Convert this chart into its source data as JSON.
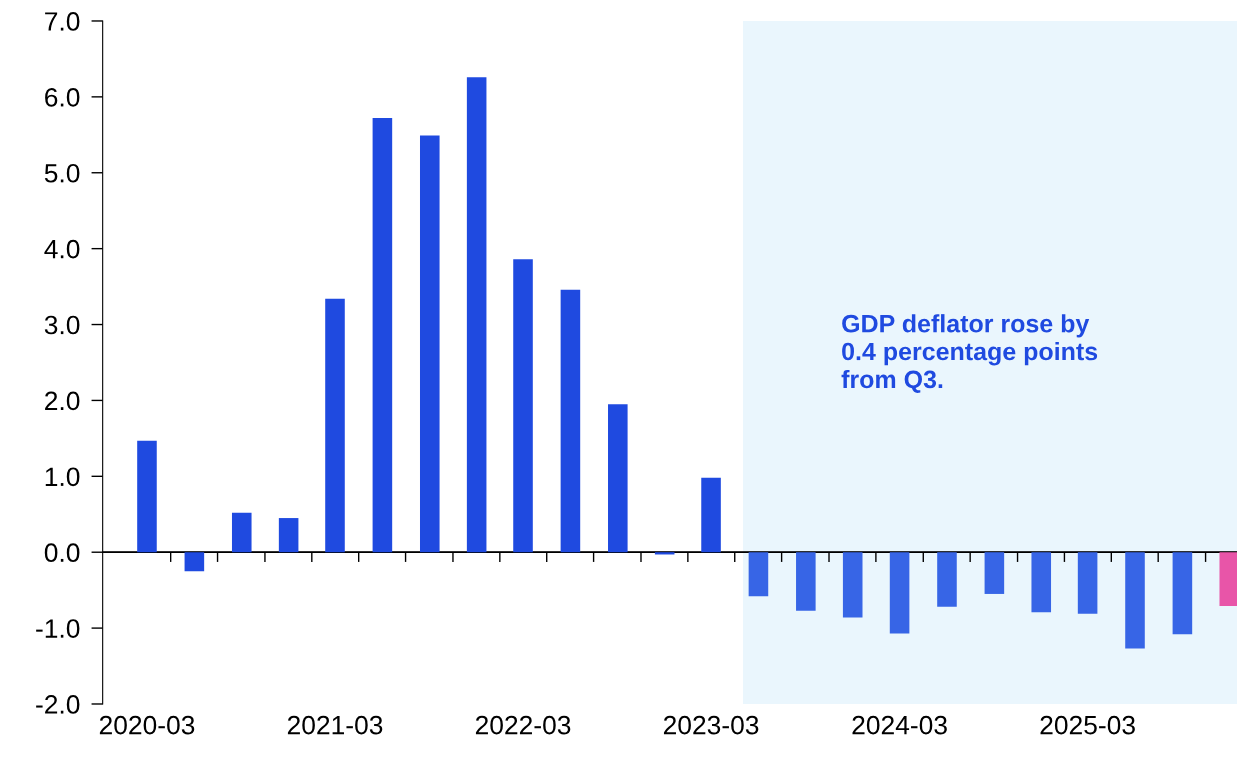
{
  "chart_data": {
    "type": "bar",
    "x": [
      "2020-03",
      "2020-06",
      "2020-09",
      "2020-12",
      "2021-03",
      "2021-06",
      "2021-09",
      "2021-12",
      "2022-03",
      "2022-06",
      "2022-09",
      "2022-12",
      "2023-03",
      "2023-06",
      "2023-09",
      "2023-12",
      "2024-03",
      "2024-06",
      "2024-09",
      "2024-12",
      "2025-03",
      "2025-06",
      "2025-09",
      "2025-12"
    ],
    "values": [
      1.47,
      -0.25,
      0.52,
      0.45,
      3.34,
      5.72,
      5.49,
      6.26,
      3.86,
      3.46,
      1.95,
      -0.03,
      0.98,
      -0.58,
      -0.77,
      -0.86,
      -1.07,
      -0.72,
      -0.55,
      -0.79,
      -0.81,
      -1.27,
      -1.08,
      -0.71
    ],
    "colors": [
      "#1f4ae0",
      "#1f4ae0",
      "#1f4ae0",
      "#1f4ae0",
      "#1f4ae0",
      "#1f4ae0",
      "#1f4ae0",
      "#1f4ae0",
      "#1f4ae0",
      "#1f4ae0",
      "#1f4ae0",
      "#1f4ae0",
      "#1f4ae0",
      "#3765e6",
      "#3765e6",
      "#3765e6",
      "#3765e6",
      "#3765e6",
      "#3765e6",
      "#3765e6",
      "#3765e6",
      "#3765e6",
      "#3765e6",
      "#e855a8"
    ],
    "xlim": [
      "2019-12-06",
      "2025-12-16"
    ],
    "xticks": [
      {
        "value": "2020-03",
        "label": "2020-03"
      },
      {
        "value": "2021-03",
        "label": "2021-03"
      },
      {
        "value": "2022-03",
        "label": "2022-03"
      },
      {
        "value": "2023-03",
        "label": "2023-03"
      },
      {
        "value": "2024-03",
        "label": "2024-03"
      },
      {
        "value": "2025-03",
        "label": "2025-03"
      },
      {
        "value": "2020-04-16",
        "label": null
      },
      {
        "value": "2020-07-16",
        "label": null
      },
      {
        "value": "2020-10-16",
        "label": null
      },
      {
        "value": "2021-01-15",
        "label": null
      },
      {
        "value": "2021-04-16",
        "label": null
      },
      {
        "value": "2021-07-16",
        "label": null
      },
      {
        "value": "2021-10-16",
        "label": null
      },
      {
        "value": "2022-01-15",
        "label": null
      },
      {
        "value": "2022-04-16",
        "label": null
      },
      {
        "value": "2022-07-16",
        "label": null
      },
      {
        "value": "2022-10-16",
        "label": null
      },
      {
        "value": "2023-01-15",
        "label": null
      },
      {
        "value": "2023-04-16",
        "label": null
      },
      {
        "value": "2023-07-16",
        "label": null
      },
      {
        "value": "2023-10-16",
        "label": null
      },
      {
        "value": "2024-01-15",
        "label": null
      },
      {
        "value": "2024-04-16",
        "label": null
      },
      {
        "value": "2024-07-16",
        "label": null
      },
      {
        "value": "2024-10-16",
        "label": null
      },
      {
        "value": "2025-01-15",
        "label": null
      },
      {
        "value": "2025-04-16",
        "label": null
      },
      {
        "value": "2025-07-16",
        "label": null
      },
      {
        "value": "2025-10-16",
        "label": null
      }
    ],
    "ylim": [
      -2,
      7
    ],
    "yticks": [
      {
        "value": -2,
        "label": "-2.0"
      },
      {
        "value": -1,
        "label": "-1.0"
      },
      {
        "value": 0,
        "label": "0.0"
      },
      {
        "value": 1,
        "label": "1.0"
      },
      {
        "value": 2,
        "label": "2.0"
      },
      {
        "value": 3,
        "label": "3.0"
      },
      {
        "value": 4,
        "label": "4.0"
      },
      {
        "value": 5,
        "label": "5.0"
      },
      {
        "value": 6,
        "label": "6.0"
      },
      {
        "value": 7,
        "label": "7.0"
      }
    ],
    "ref_lines": [
      {
        "axis": "y",
        "value": 0,
        "color": "#000000"
      }
    ],
    "bands": [
      {
        "axis": "x",
        "from": "2023-05-02",
        "to": "2025-12-16",
        "color": "#eaf6fd"
      }
    ],
    "annotations": [
      "GDP deflator rose by\n0.4 percentage points\nfrom Q3."
    ],
    "grid": false,
    "legend": false
  }
}
